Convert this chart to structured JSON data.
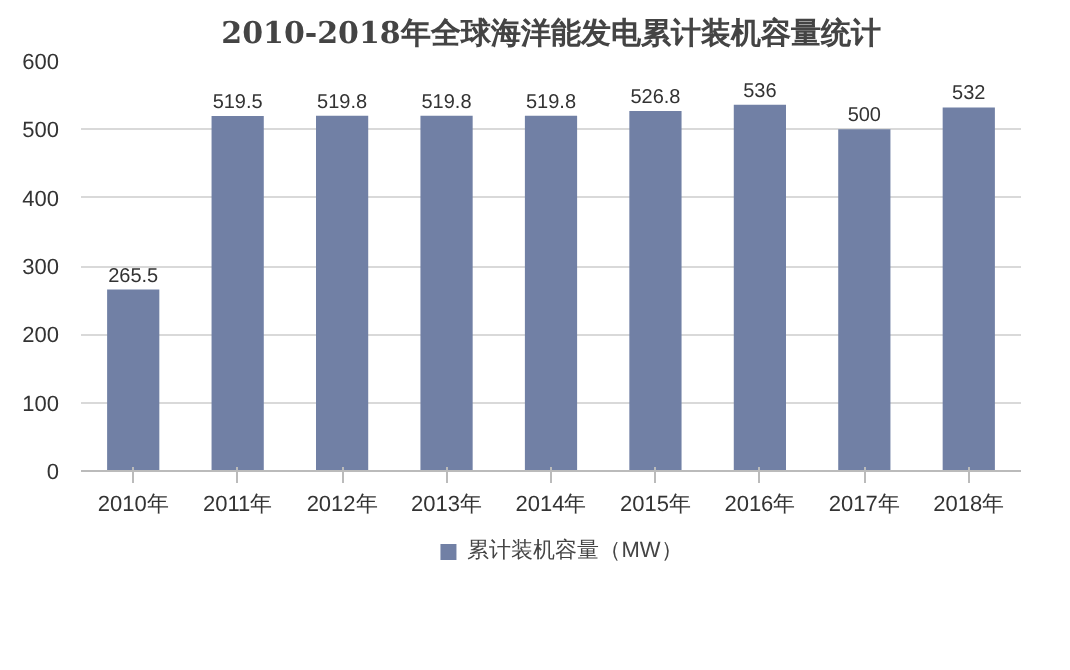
{
  "chart_data": {
    "type": "bar",
    "title": "2010-2018年全球海洋能发电累计装机容量统计",
    "categories": [
      "2010年",
      "2011年",
      "2012年",
      "2013年",
      "2014年",
      "2015年",
      "2016年",
      "2017年",
      "2018年"
    ],
    "series": [
      {
        "name": "累计装机容量（MW）",
        "color": "#7180a5",
        "values": [
          265.5,
          519.5,
          519.8,
          519.8,
          519.8,
          526.8,
          536,
          500,
          532
        ]
      }
    ],
    "ylim": [
      0,
      600
    ],
    "yticks": [
      0,
      100,
      200,
      300,
      400,
      500,
      600
    ],
    "grid": "y",
    "legend": "bottom",
    "data_labels": true
  }
}
